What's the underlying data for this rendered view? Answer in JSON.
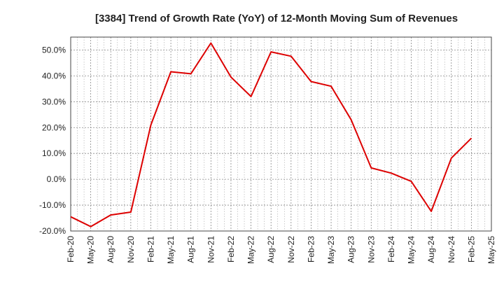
{
  "chart_data": {
    "type": "line",
    "title": "[3384]  Trend of Growth Rate (YoY) of 12-Month Moving Sum of Revenues",
    "xlabel": "",
    "ylabel": "",
    "y_unit": "%",
    "ylim": [
      -20,
      55
    ],
    "yticks": [
      -20,
      -10,
      0,
      10,
      20,
      30,
      40,
      50
    ],
    "ytick_labels": [
      "-20.0%",
      "-10.0%",
      "0.0%",
      "10.0%",
      "20.0%",
      "30.0%",
      "40.0%",
      "50.0%"
    ],
    "xticks": [
      "Feb-20",
      "May-20",
      "Aug-20",
      "Nov-20",
      "Feb-21",
      "May-21",
      "Aug-21",
      "Nov-21",
      "Feb-22",
      "May-22",
      "Aug-22",
      "Nov-22",
      "Feb-23",
      "May-23",
      "Aug-23",
      "Nov-23",
      "Feb-24",
      "May-24",
      "Aug-24",
      "Nov-24",
      "Feb-25",
      "May-25"
    ],
    "grid": true,
    "line_color": "#dd0000",
    "series": [
      {
        "x": [
          "Feb-20",
          "May-20",
          "Aug-20",
          "Nov-20",
          "Feb-21",
          "May-21",
          "Aug-21",
          "Nov-21",
          "Feb-22",
          "May-22",
          "Aug-22",
          "Nov-22",
          "Feb-23",
          "May-23",
          "Aug-23",
          "Nov-23",
          "Feb-24",
          "May-24",
          "Aug-24",
          "Nov-24",
          "Feb-25"
        ],
        "values": [
          -14.5,
          -18.3,
          -13.8,
          -12.7,
          21.0,
          41.6,
          40.8,
          52.7,
          39.5,
          32.0,
          49.3,
          47.6,
          37.8,
          36.0,
          23.0,
          4.4,
          2.4,
          -0.8,
          -12.4,
          8.2,
          15.9
        ]
      }
    ]
  }
}
